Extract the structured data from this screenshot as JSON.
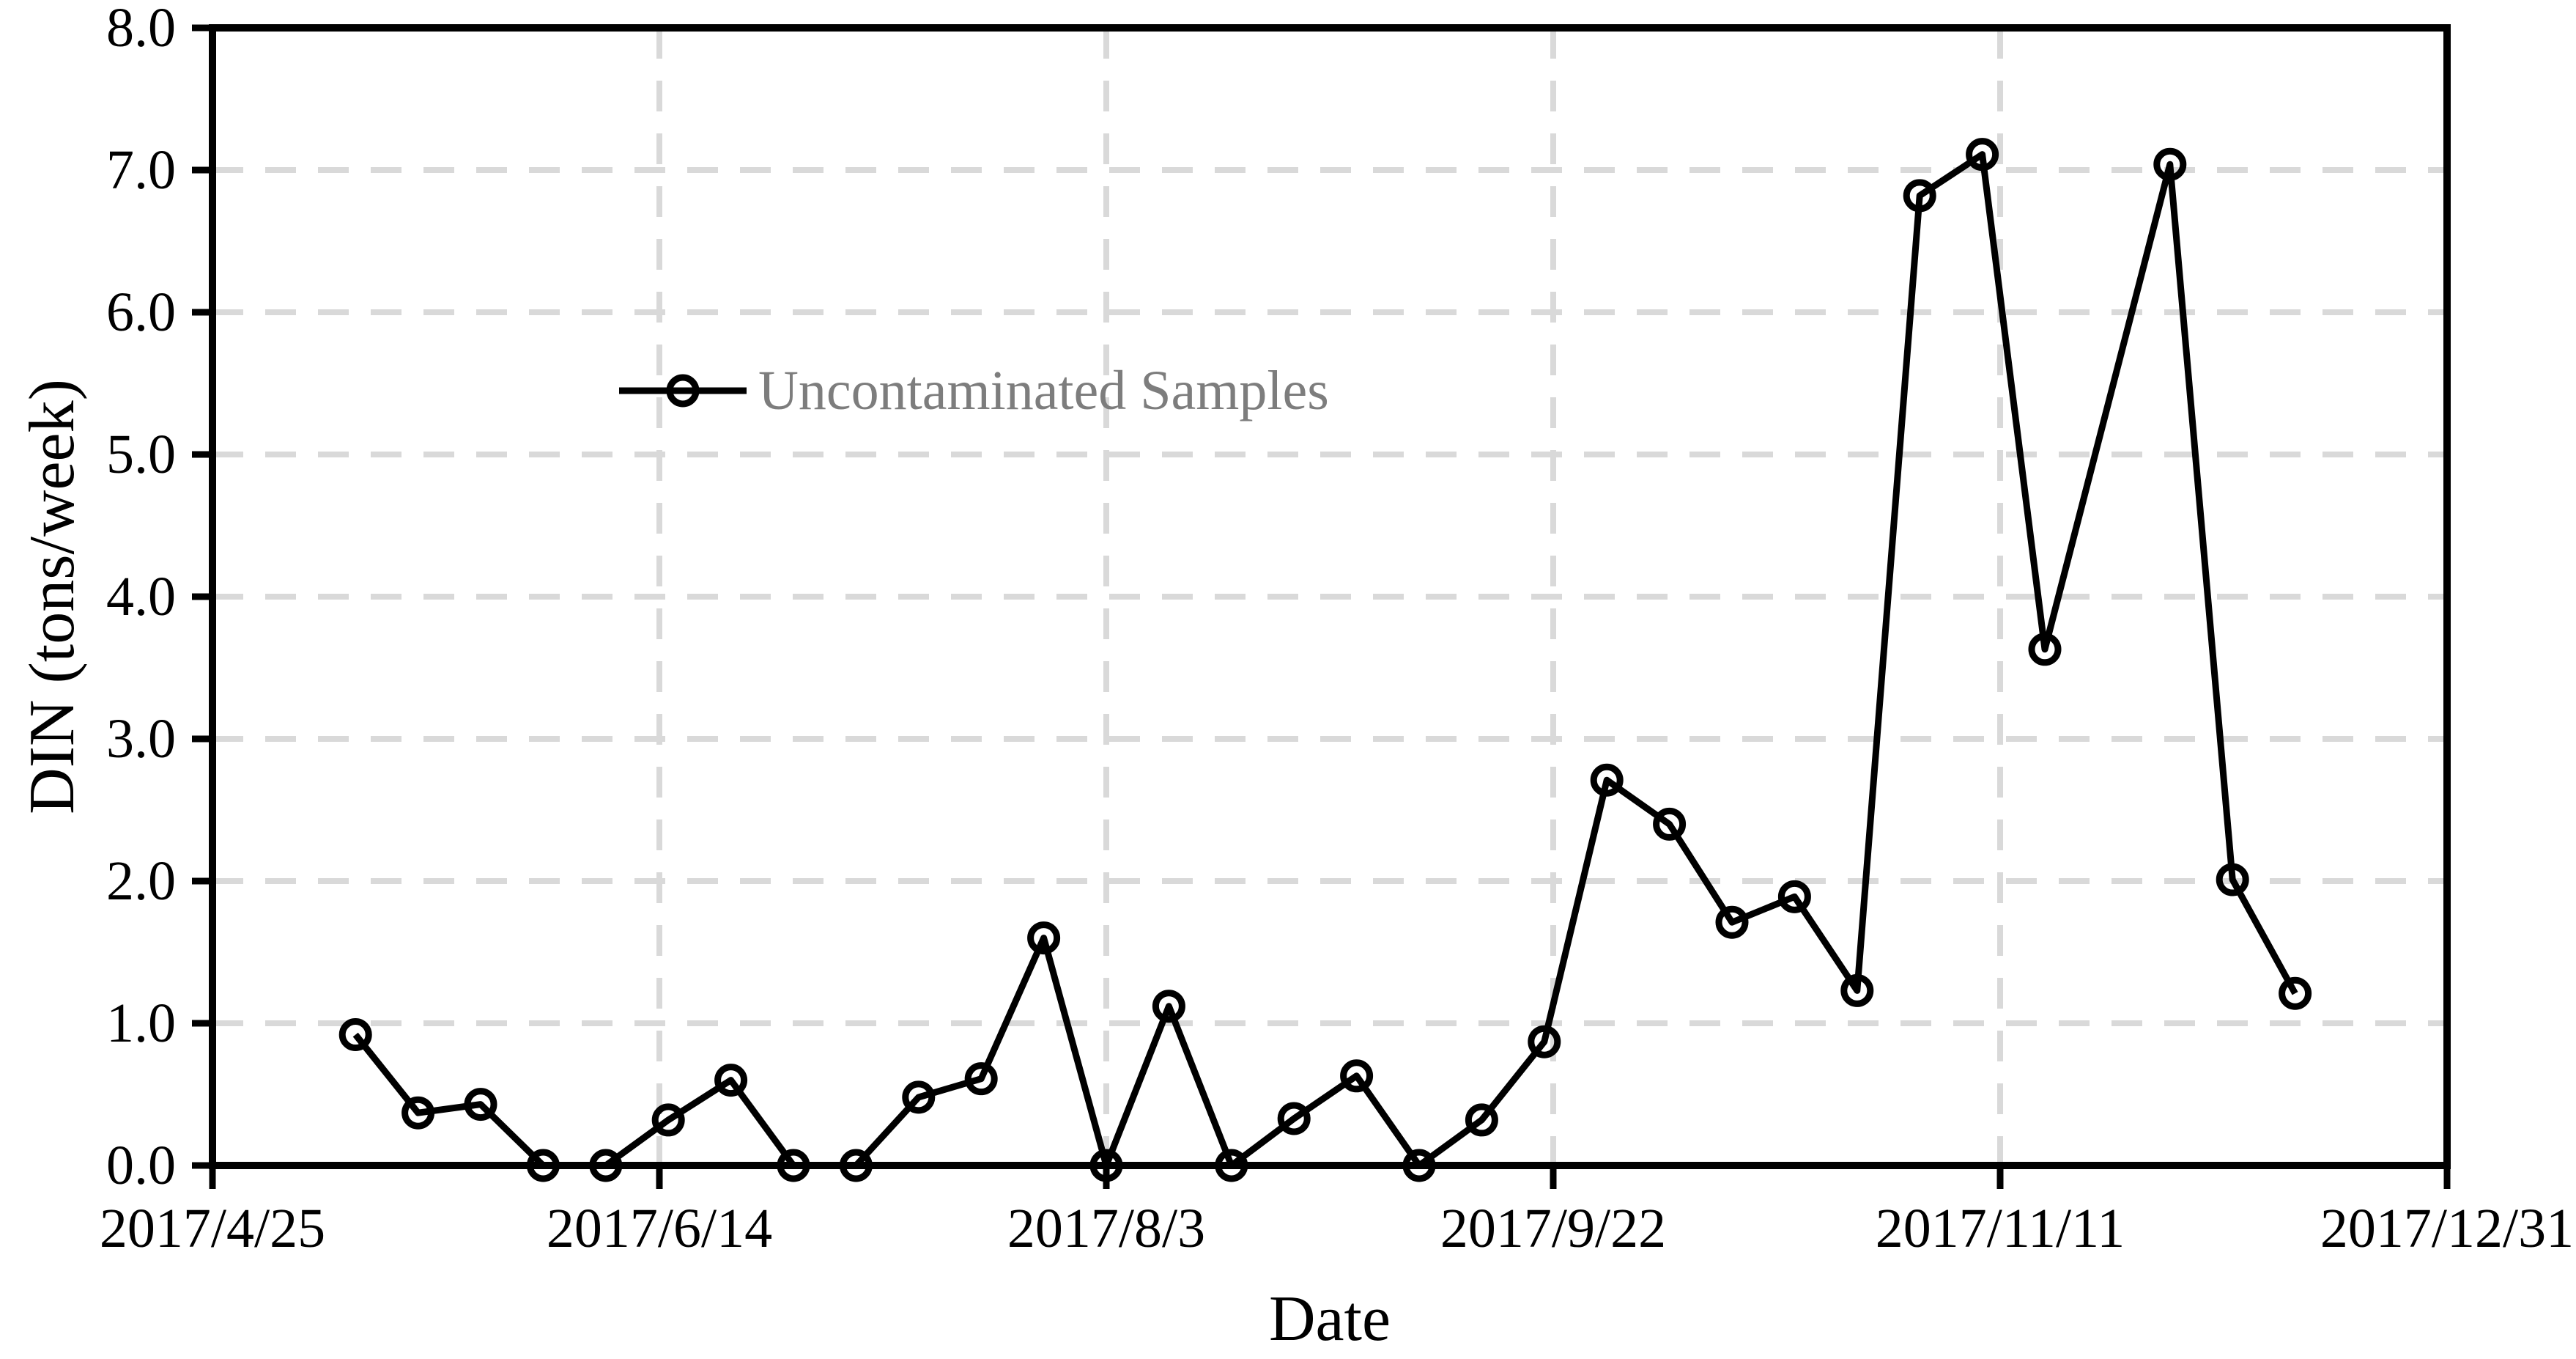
{
  "figure": {
    "background_color": "#ffffff",
    "axis_color": "#000000",
    "grid_color": "#d9d9d9",
    "line_color": "#000000",
    "legend_text_color": "#7d7d7d"
  },
  "chart_data": {
    "type": "line",
    "title": "",
    "xlabel": "Date",
    "ylabel": "DIN (tons/week)",
    "x_tick_labels": [
      "2017/4/25",
      "2017/6/14",
      "2017/8/3",
      "2017/9/22",
      "2017/11/11",
      "2017/12/31"
    ],
    "x_tick_days": [
      0,
      50,
      100,
      150,
      200,
      250
    ],
    "x_range_days": [
      0,
      250
    ],
    "y_tick_labels": [
      "0.0",
      "1.0",
      "2.0",
      "3.0",
      "4.0",
      "5.0",
      "6.0",
      "7.0",
      "8.0"
    ],
    "ylim": [
      0,
      8
    ],
    "grid": "dashed",
    "legend_position": "inside-upper-left",
    "series": [
      {
        "name": "Uncontaminated Samples",
        "marker": "open-circle",
        "color": "#000000",
        "dates": [
          "2017/5/11",
          "2017/5/18",
          "2017/5/25",
          "2017/6/1",
          "2017/6/8",
          "2017/6/15",
          "2017/6/22",
          "2017/6/29",
          "2017/7/6",
          "2017/7/13",
          "2017/7/20",
          "2017/7/27",
          "2017/8/3",
          "2017/8/10",
          "2017/8/17",
          "2017/8/24",
          "2017/8/31",
          "2017/9/7",
          "2017/9/14",
          "2017/9/21",
          "2017/9/28",
          "2017/10/5",
          "2017/10/12",
          "2017/10/19",
          "2017/10/26",
          "2017/11/2",
          "2017/11/9",
          "2017/11/16",
          "2017/11/30",
          "2017/12/7",
          "2017/12/14"
        ],
        "days": [
          16,
          23,
          30,
          37,
          44,
          51,
          58,
          65,
          72,
          79,
          86,
          93,
          100,
          107,
          114,
          121,
          128,
          135,
          142,
          149,
          156,
          163,
          170,
          177,
          184,
          191,
          198,
          205,
          219,
          226,
          233
        ],
        "values": [
          0.92,
          0.37,
          0.43,
          0.0,
          0.0,
          0.32,
          0.6,
          0.0,
          0.0,
          0.48,
          0.61,
          1.6,
          0.0,
          1.12,
          0.0,
          0.33,
          0.63,
          0.0,
          0.32,
          0.87,
          2.71,
          2.4,
          1.71,
          1.89,
          1.23,
          6.82,
          7.11,
          3.63,
          7.04,
          2.01,
          1.21
        ]
      }
    ]
  },
  "legend": {
    "label": "Uncontaminated Samples"
  }
}
